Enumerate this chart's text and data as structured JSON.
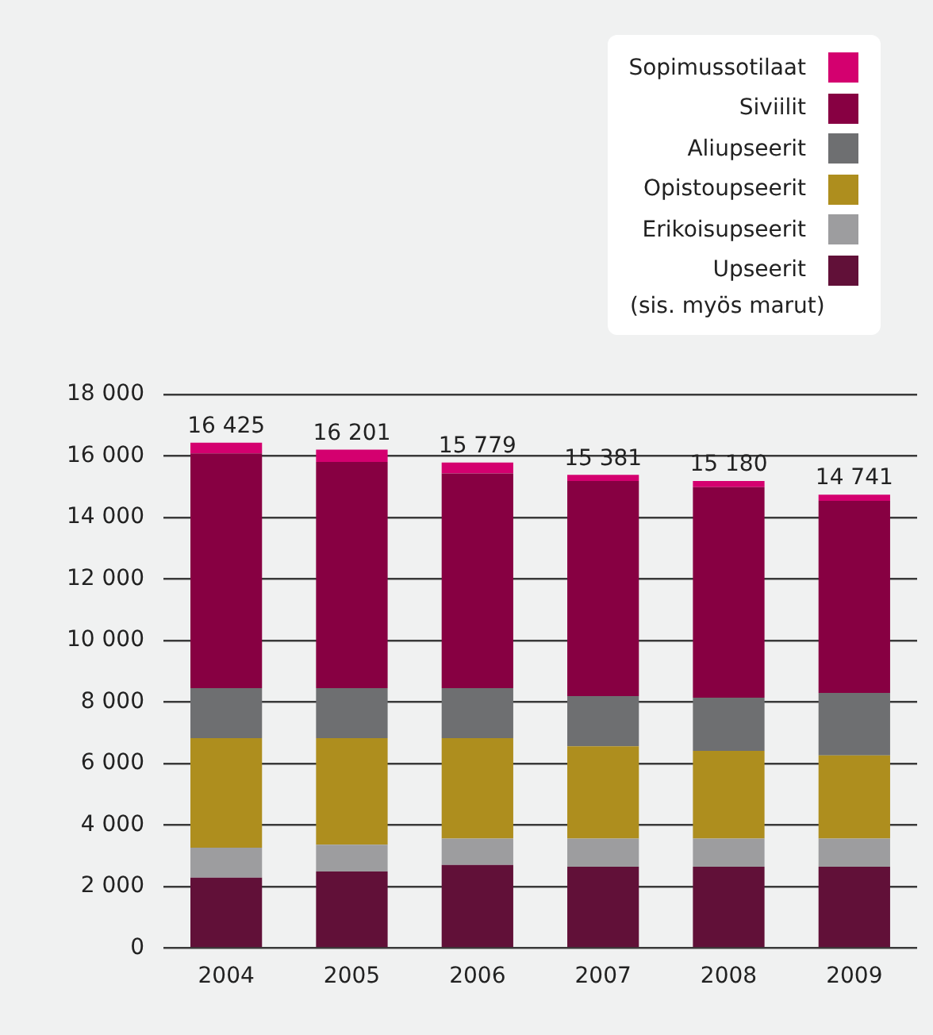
{
  "chart_data": {
    "type": "bar",
    "stacked": true,
    "categories": [
      "2004",
      "2005",
      "2006",
      "2007",
      "2008",
      "2009"
    ],
    "series": [
      {
        "name": "Upseerit",
        "color": "#611038",
        "values": [
          2290,
          2490,
          2700,
          2640,
          2640,
          2640
        ]
      },
      {
        "name": "Erikoisupseerit",
        "color": "#9d9d9f",
        "values": [
          970,
          870,
          860,
          920,
          920,
          920
        ]
      },
      {
        "name": "Opistoupseerit",
        "color": "#ae8e1e",
        "values": [
          3560,
          3460,
          3260,
          3000,
          2850,
          2700
        ]
      },
      {
        "name": "Aliupseerit",
        "color": "#6e6f71",
        "values": [
          1630,
          1630,
          1630,
          1630,
          1730,
          2030
        ]
      },
      {
        "name": "Siviilit",
        "color": "#870042",
        "values": [
          7630,
          7350,
          6980,
          6990,
          6840,
          6250
        ]
      },
      {
        "name": "Sopimussotilaat",
        "color": "#d4006f",
        "values": [
          345,
          400,
          350,
          200,
          200,
          200
        ]
      }
    ],
    "totals": [
      "16 425",
      "16 201",
      "15 779",
      "15 381",
      "15 180",
      "14 741"
    ],
    "ylim": [
      0,
      18000
    ],
    "yticks": [
      {
        "value": 0,
        "label": "0"
      },
      {
        "value": 2000,
        "label": "2 000"
      },
      {
        "value": 4000,
        "label": "4 000"
      },
      {
        "value": 6000,
        "label": "6 000"
      },
      {
        "value": 8000,
        "label": "8 000"
      },
      {
        "value": 10000,
        "label": "10 000"
      },
      {
        "value": 12000,
        "label": "12 000"
      },
      {
        "value": 14000,
        "label": "14 000"
      },
      {
        "value": 16000,
        "label": "16 000"
      },
      {
        "value": 18000,
        "label": "18 000"
      }
    ],
    "grid": "y",
    "legend": "top right",
    "annotations": [
      "(sis. myös marut)"
    ]
  }
}
